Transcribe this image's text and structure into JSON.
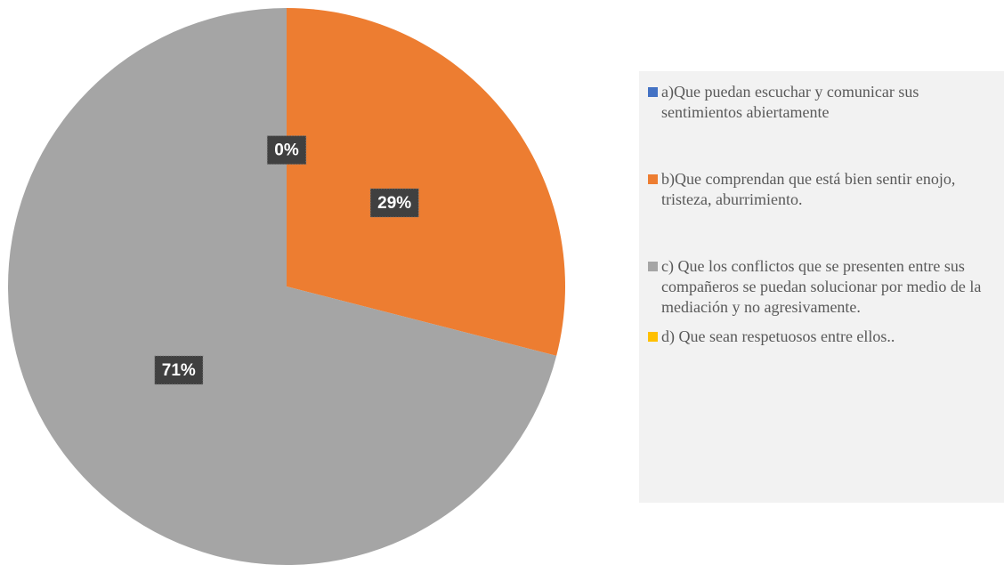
{
  "chart_data": {
    "type": "pie",
    "categories": [
      "a)Que puedan escuchar y comunicar sus sentimientos abiertamente",
      "b)Que comprendan que está bien sentir enojo, tristeza, aburrimiento.",
      "c) Que los conflictos que se presenten entre sus compañeros se puedan solucionar por medio de la mediación y no agresivamente.",
      "d) Que sean respetuosos entre ellos.."
    ],
    "values": [
      0,
      29,
      71,
      0
    ],
    "value_labels": [
      "0%",
      "29%",
      "71%",
      null
    ],
    "colors": [
      "#4472c4",
      "#ed7d31",
      "#a5a5a5",
      "#ffc000"
    ],
    "legend": "right"
  }
}
